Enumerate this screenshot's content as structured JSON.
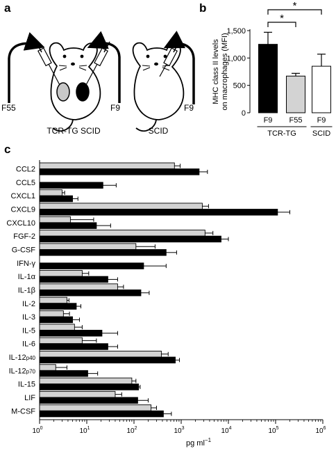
{
  "panels": {
    "a": {
      "letter": "a",
      "mouse_left_label": "TCR-TG SCID",
      "mouse_right_label": "SCID",
      "injection_left_left": "F55",
      "injection_left_right": "F9",
      "injection_right": "F9"
    },
    "b": {
      "letter": "b"
    },
    "c": {
      "letter": "c"
    }
  },
  "colors": {
    "black_bar": "#000000",
    "grey_bar": "#d3d3d3",
    "white_bar": "#ffffff",
    "left_kidney": "#c8c8c8"
  },
  "chart_data": [
    {
      "id": "b",
      "type": "bar",
      "ylabel_lines": [
        "MHC class II levels",
        "on macrophages (MFI)"
      ],
      "ylim": [
        0,
        1500
      ],
      "yticks": [
        0,
        500,
        1000,
        1500
      ],
      "ytick_labels": [
        "0",
        "500",
        "1,000",
        "1,500"
      ],
      "categories": [
        "F9",
        "F55",
        "F9"
      ],
      "values": [
        1250,
        670,
        850
      ],
      "errors": [
        220,
        50,
        220
      ],
      "fills": [
        "black",
        "grey",
        "white"
      ],
      "groups": [
        {
          "label": "TCR-TG",
          "span": [
            0,
            1
          ]
        },
        {
          "label": "SCID",
          "span": [
            2,
            2
          ]
        }
      ],
      "significance": [
        {
          "between": [
            0,
            1
          ],
          "label": "*"
        },
        {
          "between": [
            0,
            2
          ],
          "label": "*"
        }
      ]
    },
    {
      "id": "c",
      "type": "bar",
      "orientation": "horizontal",
      "xscale": "log",
      "xlim": [
        1,
        1000000
      ],
      "xticks": [
        1,
        10,
        100,
        1000,
        10000,
        100000,
        1000000
      ],
      "xtick_bases": [
        "10",
        "10",
        "10",
        "10",
        "10",
        "10",
        "10"
      ],
      "xtick_exponents": [
        "0",
        "1",
        "2",
        "3",
        "4",
        "5",
        "6"
      ],
      "xlabel_main": "pg ml",
      "xlabel_sup": "−1",
      "categories": [
        {
          "main": "CCL2",
          "sub": ""
        },
        {
          "main": "CCL5",
          "sub": ""
        },
        {
          "main": "CXCL1",
          "sub": ""
        },
        {
          "main": "CXCL9",
          "sub": ""
        },
        {
          "main": "CXCL10",
          "sub": ""
        },
        {
          "main": "FGF-2",
          "sub": ""
        },
        {
          "main": "G-CSF",
          "sub": ""
        },
        {
          "main": "IFN-γ",
          "sub": ""
        },
        {
          "main": "IL-1α",
          "sub": ""
        },
        {
          "main": "IL-1β",
          "sub": ""
        },
        {
          "main": "IL-2",
          "sub": ""
        },
        {
          "main": "IL-3",
          "sub": ""
        },
        {
          "main": "IL-5",
          "sub": ""
        },
        {
          "main": "IL-6",
          "sub": ""
        },
        {
          "main": "IL-12",
          "sub": "p40"
        },
        {
          "main": "IL-12",
          "sub": "p70"
        },
        {
          "main": "IL-15",
          "sub": ""
        },
        {
          "main": "LIF",
          "sub": ""
        },
        {
          "main": "M-CSF",
          "sub": ""
        }
      ],
      "series": [
        {
          "fill": "grey",
          "values": [
            720,
            null,
            3,
            2800,
            4.5,
            3200,
            110,
            null,
            8,
            45,
            3.8,
            3.2,
            5.5,
            8,
            380,
            2.2,
            90,
            40,
            230
          ],
          "errors_upper": [
            950,
            null,
            3.4,
            3800,
            14,
            4700,
            280,
            null,
            11,
            60,
            4.2,
            4.3,
            8,
            16,
            530,
            3.8,
            110,
            55,
            300
          ]
        },
        {
          "fill": "black",
          "values": [
            2400,
            22,
            5,
            110000,
            16,
            7000,
            480,
            160,
            28,
            140,
            6,
            5,
            21,
            28,
            750,
            10.5,
            125,
            120,
            420
          ],
          "errors_upper": [
            3600,
            42,
            6.5,
            200000,
            32,
            10000,
            800,
            480,
            45,
            210,
            7.5,
            7,
            45,
            45,
            920,
            17,
            135,
            200,
            620
          ]
        }
      ]
    }
  ]
}
